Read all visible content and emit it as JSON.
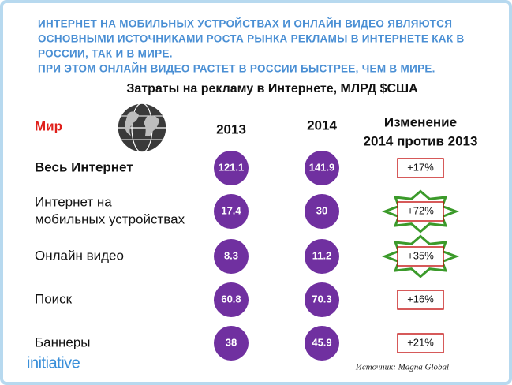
{
  "header": {
    "lines": [
      "ИНТЕРНЕТ НА МОБИЛЬНЫХ УСТРОЙСТВАХ И ОНЛАЙН ВИДЕО ЯВЛЯЮТСЯ",
      "ОСНОВНЫМИ ИСТОЧНИКАМИ РОСТА РЫНКА РЕКЛАМЫ В ИНТЕРНЕТЕ КАК В",
      "РОССИИ, ТАК И В МИРЕ.",
      "ПРИ ЭТОМ ОНЛАЙН ВИДЕО РАСТЕТ В РОССИИ БЫСТРЕЕ, ЧЕМ В МИРЕ."
    ]
  },
  "subtitle": "Затраты на рекламу в Интернете, МЛРД $США",
  "table": {
    "region": "Мир",
    "columns": [
      "2013",
      "2014",
      [
        "Изменение",
        "2014 против 2013"
      ]
    ],
    "rows": [
      {
        "label": [
          "Весь Интернет"
        ],
        "v2013": 121.1,
        "v2014": 141.9,
        "change": "+17%"
      },
      {
        "label": [
          "Интернет на",
          "мобильных устройствах"
        ],
        "v2013": 17.4,
        "v2014": 30,
        "change": "+72%"
      },
      {
        "label": [
          "Онлайн видео"
        ],
        "v2013": 8.3,
        "v2014": 11.2,
        "change": "+35%"
      },
      {
        "label": [
          "Поиск"
        ],
        "v2013": 60.8,
        "v2014": 70.3,
        "change": "+16%"
      },
      {
        "label": [
          "Баннеры"
        ],
        "v2013": 38,
        "v2014": 45.9,
        "change": "+21%"
      }
    ]
  },
  "logo": "initiative",
  "source": "Источник: Magna Global"
}
